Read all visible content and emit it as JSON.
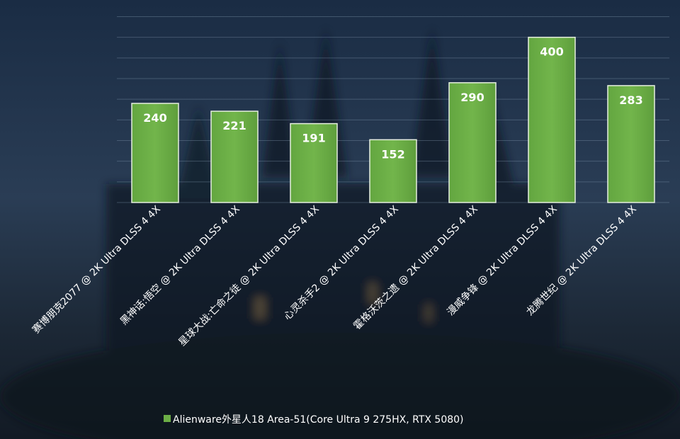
{
  "chart_data": {
    "type": "bar",
    "title": "",
    "xlabel": "",
    "ylabel": "",
    "ylim": [
      0,
      480
    ],
    "grid": true,
    "legend_position": "bottom-center",
    "categories": [
      "赛博朋克2077 @ 2K Ultra DLSS 4 4X",
      "黑神话:悟空 @ 2K Ultra DLSS 4 4X",
      "星球大战:亡命之徒 @ 2K Ultra DLSS 4 4X",
      "心灵杀手2 @ 2K Ultra DLSS 4 4X",
      "霍格沃茨之遗 @ 2K Ultra DLSS 4 4X",
      "漫威争锋 @ 2K Ultra DLSS 4 4X",
      "龙腾世纪 @ 2K Ultra DLSS 4 4X"
    ],
    "series": [
      {
        "name": "Alienware外星人18 Area-51(Core Ultra 9 275HX, RTX 5080)",
        "values": [
          240,
          221,
          191,
          152,
          290,
          400,
          283
        ],
        "color": "#6cae46"
      }
    ],
    "data_labels": [
      "240",
      "221",
      "191",
      "152",
      "290",
      "400",
      "283"
    ]
  }
}
